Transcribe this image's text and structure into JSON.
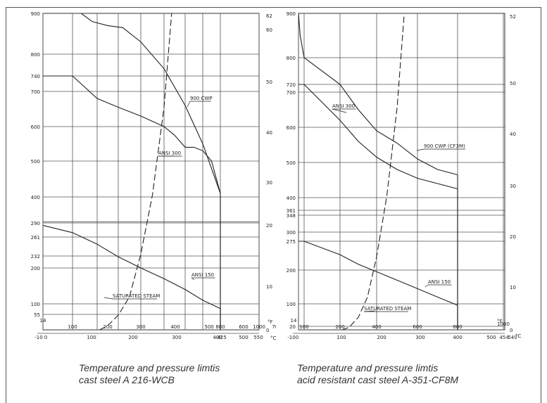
{
  "charts": [
    {
      "caption": [
        "Temperature and pressure limtis",
        "cast steel A 216-WCB"
      ],
      "chart_data": {
        "type": "line",
        "title": "",
        "xlabel": "°F",
        "x2label": "°C",
        "ylabel": "",
        "xlim": [
          14,
          1000
        ],
        "ylim": [
          0,
          900
        ],
        "x_ticks": [
          "14",
          "100",
          "200",
          "300",
          "400",
          "500",
          "600",
          "700",
          "800",
          "1000"
        ],
        "x2_ticks": [
          "-10",
          "0",
          "100",
          "200",
          "300",
          "400",
          "425",
          "500",
          "550"
        ],
        "y_ticks": [
          "55",
          "100",
          "200",
          "232",
          "261",
          "290",
          "400",
          "500",
          "600",
          "700",
          "740",
          "800",
          "900"
        ],
        "y2_ticks": [
          "0",
          "10",
          "20",
          "30",
          "40",
          "50",
          "60",
          "62"
        ],
        "series": [
          {
            "name": "900 CWP",
            "x": [
              14,
              135,
              180,
              250,
              320,
              400,
              500,
              600,
              700,
              800
            ],
            "y": [
              970,
              900,
              880,
              870,
              865,
              830,
              760,
              660,
              550,
              410
            ]
          },
          {
            "name": "ANSI 300",
            "x": [
              14,
              100,
              200,
              300,
              400,
              500,
              550,
              600,
              650,
              700,
              750,
              800
            ],
            "y": [
              740,
              740,
              680,
              655,
              630,
              600,
              575,
              540,
              540,
              530,
              500,
              410
            ]
          },
          {
            "name": "ANSI 150",
            "x": [
              14,
              100,
              200,
              300,
              400,
              500,
              600,
              700,
              800
            ],
            "y": [
              285,
              270,
              250,
              230,
              200,
              170,
              140,
              110,
              80
            ]
          },
          {
            "name": "SATURATED STEAM",
            "x": [
              212,
              250,
              300,
              350,
              400,
              450,
              500,
              550,
              600,
              650
            ],
            "y": [
              0,
              15,
              52,
              120,
              235,
              405,
              655,
              990,
              1420,
              1950
            ]
          }
        ]
      }
    },
    {
      "caption": [
        "Temperature and pressure limtis",
        "acid resistant cast steel A-351-CF8M"
      ],
      "chart_data": {
        "type": "line",
        "title": "",
        "xlabel": "°F",
        "x2label": "°C",
        "ylabel": "",
        "xlim": [
          14,
          1000
        ],
        "ylim": [
          0,
          900
        ],
        "x_ticks": [
          "14",
          "100",
          "200",
          "400",
          "600",
          "800",
          "1000"
        ],
        "x2_ticks": [
          "-10",
          "0",
          "100",
          "200",
          "300",
          "400",
          "454",
          "500",
          "540"
        ],
        "y_ticks": [
          "20",
          "100",
          "200",
          "275",
          "300",
          "348",
          "361",
          "400",
          "500",
          "600",
          "700",
          "720",
          "800",
          "900"
        ],
        "y2_ticks": [
          "0",
          "10",
          "20",
          "30",
          "40",
          "50",
          "52"
        ],
        "series": [
          {
            "name": "900 CWP (CF3M)",
            "x": [
              14,
              40,
              100,
              200,
              300,
              400,
              500,
              600,
              700,
              800
            ],
            "y": [
              900,
              850,
              800,
              720,
              650,
              590,
              555,
              510,
              480,
              465
            ]
          },
          {
            "name": "ANSI 300",
            "x": [
              14,
              100,
              200,
              300,
              400,
              500,
              600,
              700,
              800
            ],
            "y": [
              720,
              720,
              620,
              560,
              515,
              480,
              455,
              440,
              425
            ]
          },
          {
            "name": "ANSI 150",
            "x": [
              14,
              100,
              200,
              300,
              400,
              500,
              600,
              700,
              800
            ],
            "y": [
              275,
              275,
              240,
              215,
              195,
              170,
              145,
              120,
              95
            ]
          },
          {
            "name": "SATURATED STEAM",
            "x": [
              212,
              250,
              300,
              350,
              400,
              450,
              500,
              550,
              600,
              650
            ],
            "y": [
              0,
              15,
              52,
              120,
              235,
              405,
              655,
              990,
              1420,
              1950
            ]
          }
        ]
      }
    }
  ]
}
